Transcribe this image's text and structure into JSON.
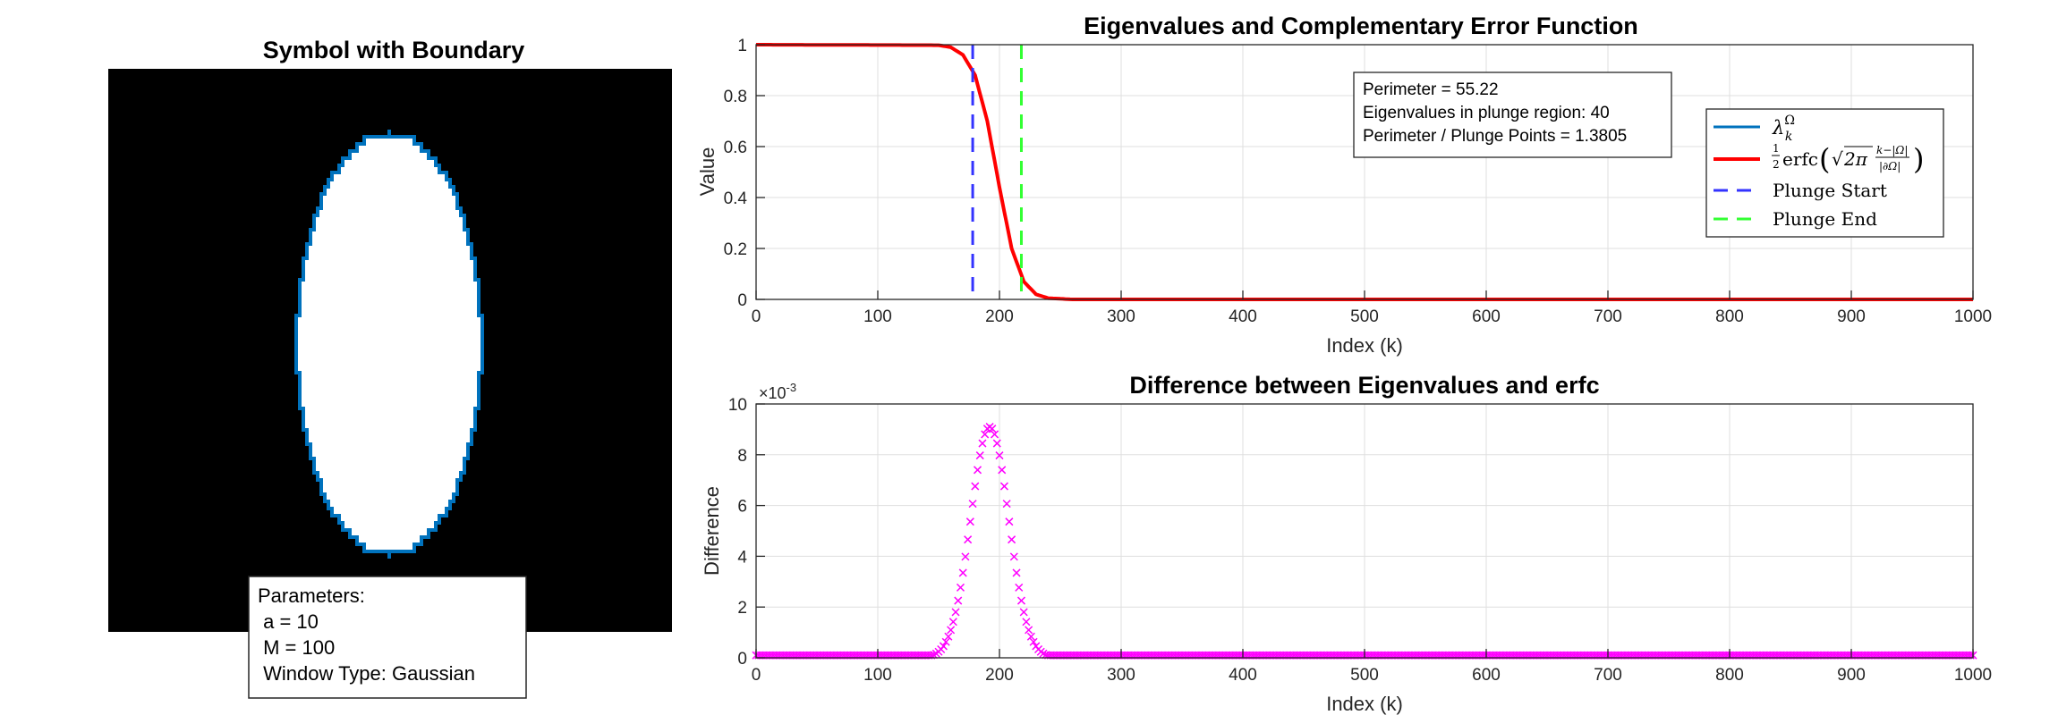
{
  "colors": {
    "axis": "#262626",
    "grid": "#dfdfdf",
    "boundary": "#0072BD",
    "erfc": "#FF0000",
    "plunge_start": "#3333FF",
    "plunge_end": "#33FF33",
    "difference": "#FF00FF",
    "shape_fill": "#000000",
    "shape_inside": "#FFFFFF"
  },
  "symbol_panel": {
    "title": "Symbol with Boundary",
    "parameters": {
      "heading": "Parameters:",
      "a": " a = 10",
      "M": " M = 100",
      "window": " Window Type: Gaussian"
    }
  },
  "chart_data": [
    {
      "type": "line",
      "title": "Eigenvalues and Complementary Error Function",
      "xlabel": "Index (k)",
      "ylabel": "Value",
      "xlim": [
        0,
        1000
      ],
      "ylim": [
        0,
        1
      ],
      "xticks": [
        0,
        100,
        200,
        300,
        400,
        500,
        600,
        700,
        800,
        900,
        1000
      ],
      "yticks": [
        0,
        0.2,
        0.4,
        0.6,
        0.8,
        1
      ],
      "ytick_labels": [
        "0",
        "0.2",
        "0.4",
        "0.6",
        "0.8",
        "1"
      ],
      "grid": true,
      "series": [
        {
          "name": "eigenvalues",
          "legend_label": "λ",
          "legend_sup": "Ω",
          "legend_sub": "k",
          "x": [
            0,
            150,
            160,
            170,
            180,
            190,
            195,
            200,
            210,
            220,
            230,
            240,
            260,
            1000
          ],
          "values": [
            1,
            0.998,
            0.99,
            0.96,
            0.88,
            0.7,
            0.57,
            0.44,
            0.2,
            0.07,
            0.02,
            0.005,
            0,
            0
          ]
        },
        {
          "name": "erfc",
          "legend_label": "½erfc(√2π (k−|Ω|)/|∂Ω|)",
          "x": [
            0,
            150,
            160,
            170,
            180,
            190,
            195,
            200,
            210,
            220,
            230,
            240,
            260,
            1000
          ],
          "values": [
            1,
            0.998,
            0.99,
            0.96,
            0.88,
            0.7,
            0.57,
            0.44,
            0.2,
            0.07,
            0.02,
            0.005,
            0,
            0
          ]
        }
      ],
      "vlines": [
        {
          "name": "Plunge Start",
          "x": 178
        },
        {
          "name": "Plunge End",
          "x": 218
        }
      ],
      "annotation": [
        "Perimeter = 55.22",
        "Eigenvalues in plunge region: 40",
        "Perimeter / Plunge Points = 1.3805"
      ],
      "legend_placement": "top-right"
    },
    {
      "type": "scatter",
      "title": "Difference between Eigenvalues and erfc",
      "xlabel": "Index (k)",
      "ylabel": "Difference",
      "xlim": [
        0,
        1000
      ],
      "ylim": [
        0,
        0.01
      ],
      "exponent_label": "×10",
      "exponent_value": "-3",
      "xticks": [
        0,
        100,
        200,
        300,
        400,
        500,
        600,
        700,
        800,
        900,
        1000
      ],
      "yticks": [
        0,
        0.002,
        0.004,
        0.006,
        0.008,
        0.01
      ],
      "ytick_labels": [
        "0",
        "2",
        "4",
        "6",
        "8",
        "10"
      ],
      "grid": true,
      "series": [
        {
          "name": "difference",
          "marker": "x",
          "peak_x": 192,
          "peak_y": 0.0091,
          "width": 22,
          "baseline": 0.0001
        }
      ]
    }
  ]
}
